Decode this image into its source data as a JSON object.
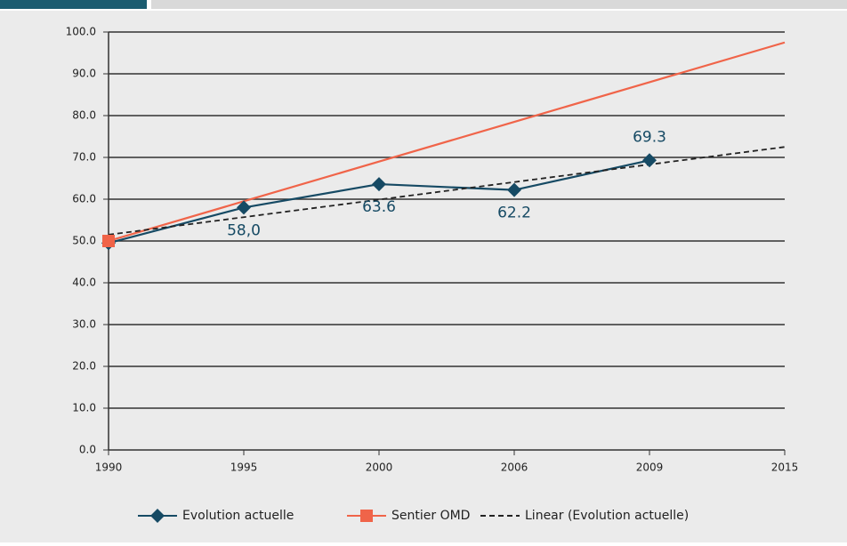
{
  "chart_data": {
    "type": "line",
    "categories": [
      "1990",
      "1995",
      "2000",
      "2006",
      "2009",
      "2015"
    ],
    "series": [
      {
        "name": "Evolution actuelle",
        "color": "#164a64",
        "values": [
          49.5,
          58.0,
          63.6,
          62.2,
          69.3,
          null
        ],
        "value_labels": [
          null,
          "58,0",
          "63.6",
          "62.2",
          "69.3",
          null
        ]
      },
      {
        "name": "Sentier OMD",
        "color": "#f06449",
        "values": [
          50,
          59.5,
          69,
          78.5,
          88,
          97.5
        ]
      },
      {
        "name": "Linear (Evolution actuelle)",
        "color": "#222222",
        "values": [
          51.5,
          55.7,
          59.9,
          64.1,
          68.3,
          72.5
        ]
      }
    ],
    "ylim": [
      0,
      100
    ],
    "yticks": [
      {
        "value": 0,
        "label": "0.0"
      },
      {
        "value": 10,
        "label": "10.0"
      },
      {
        "value": 20,
        "label": "20.0"
      },
      {
        "value": 30,
        "label": "30.0"
      },
      {
        "value": 40,
        "label": "40.0"
      },
      {
        "value": 50,
        "label": "50.0"
      },
      {
        "value": 60,
        "label": "60.0"
      },
      {
        "value": 70,
        "label": "70.0"
      },
      {
        "value": 80,
        "label": "80.0"
      },
      {
        "value": 90,
        "label": "90.0"
      },
      {
        "value": 100,
        "label": "100.0"
      }
    ],
    "grid": true,
    "legend": "bottom"
  }
}
